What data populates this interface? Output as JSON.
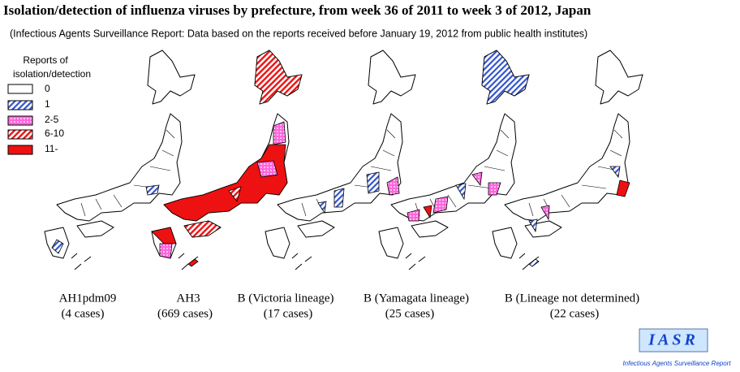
{
  "header": {
    "title": "Isolation/detection of influenza viruses by prefecture, from week 36 of 2011 to week 3 of 2012, Japan",
    "subtitle": "(Infectious Agents Surveillance Report: Data based on the reports received before January 19, 2012 from public health institutes)"
  },
  "legend": {
    "title_lines": [
      "Reports of",
      "isolation/detection"
    ],
    "items": [
      "0",
      "1",
      "2-5",
      "6-10",
      "11-"
    ]
  },
  "maps": [
    {
      "name": "AH1pdm09",
      "cases": "(4 cases)"
    },
    {
      "name": "AH3",
      "cases": "(669 cases)"
    },
    {
      "name": "B (Victoria lineage)",
      "cases": "(17 cases)"
    },
    {
      "name": "B (Yamagata lineage)",
      "cases": "(25 cases)"
    },
    {
      "name": "B (Lineage not determined)",
      "cases": "(22 cases)"
    }
  ],
  "logo": {
    "text": "IASR",
    "caption": "Infectious Agents Surveillance Report"
  }
}
